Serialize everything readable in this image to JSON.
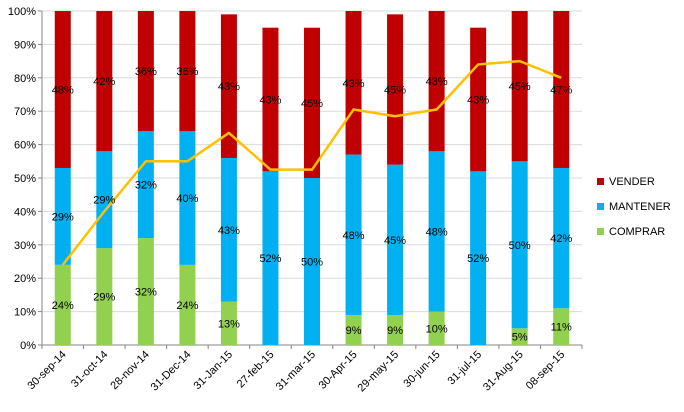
{
  "chart_data": {
    "type": "bar",
    "stacked": true,
    "categories": [
      "30-sep-14",
      "31-oct-14",
      "28-nov-14",
      "31-Dec-14",
      "31-Jan-15",
      "27-feb-15",
      "31-mar-15",
      "30-Apr-15",
      "29-may-15",
      "30-jun-15",
      "31-jul-15",
      "31-Aug-15",
      "08-sep-15"
    ],
    "ylim": [
      0,
      100
    ],
    "yticks": [
      "0%",
      "10%",
      "20%",
      "30%",
      "40%",
      "50%",
      "60%",
      "70%",
      "80%",
      "90%",
      "100%"
    ],
    "grid": true,
    "legend_position": "right",
    "series": [
      {
        "name": "COMPRAR",
        "color": "#92D050",
        "values": [
          24,
          29,
          32,
          24,
          13,
          0,
          0,
          9,
          9,
          10,
          0,
          5,
          11
        ],
        "labels": [
          "24%",
          "29%",
          "32%",
          "24%",
          "13%",
          "",
          "",
          "9%",
          "9%",
          "10%",
          "",
          "5%",
          "11%"
        ]
      },
      {
        "name": "MANTENER",
        "color": "#00B0F0",
        "values": [
          29,
          29,
          32,
          40,
          43,
          52,
          50,
          48,
          45,
          48,
          52,
          50,
          42
        ],
        "labels": [
          "29%",
          "29%",
          "32%",
          "40%",
          "43%",
          "52%",
          "50%",
          "48%",
          "45%",
          "48%",
          "52%",
          "50%",
          "42%"
        ]
      },
      {
        "name": "VENDER",
        "color": "#C00000",
        "values": [
          48,
          42,
          36,
          36,
          43,
          43,
          45,
          43,
          45,
          43,
          43,
          45,
          47
        ],
        "labels": [
          "48%",
          "42%",
          "36%",
          "36%",
          "43%",
          "43%",
          "45%",
          "43%",
          "45%",
          "43%",
          "43%",
          "45%",
          "47%"
        ]
      }
    ],
    "line": {
      "color": "#FFC000",
      "values": [
        24,
        40,
        55,
        55,
        63.5,
        52.5,
        52.5,
        70.5,
        68.5,
        70.5,
        84,
        85,
        80
      ]
    }
  }
}
